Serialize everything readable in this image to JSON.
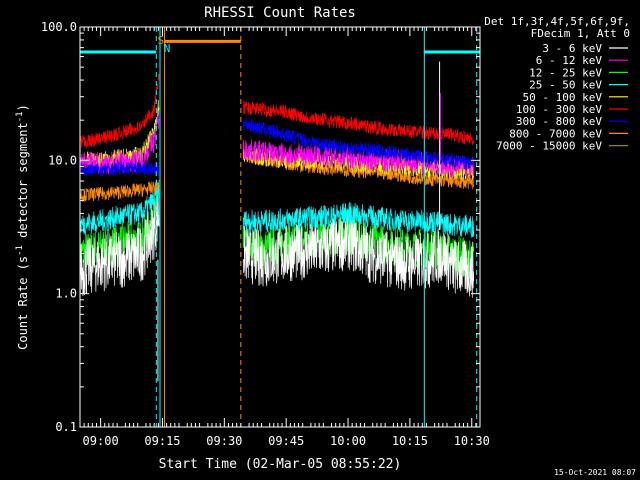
{
  "chart_data": {
    "type": "line",
    "title": "RHESSI Count Rates",
    "xlabel": "Start Time (02-Mar-05 08:55:22)",
    "ylabel_parts": [
      "Count Rate (s",
      "-1",
      " detector segment",
      "-1",
      ")"
    ],
    "yscale": "log",
    "ylim": [
      0.1,
      100.0
    ],
    "xlim_minutes_after_0855": [
      0,
      97
    ],
    "yticks": [
      {
        "value": 0.1,
        "label": "0.1"
      },
      {
        "value": 1.0,
        "label": "1.0"
      },
      {
        "value": 10.0,
        "label": "10.0"
      },
      {
        "value": 100.0,
        "label": "100.0"
      }
    ],
    "xticks": [
      {
        "minute": 5,
        "label": "09:00"
      },
      {
        "minute": 20,
        "label": "09:15"
      },
      {
        "minute": 35,
        "label": "09:30"
      },
      {
        "minute": 50,
        "label": "09:45"
      },
      {
        "minute": 65,
        "label": "10:00"
      },
      {
        "minute": 80,
        "label": "10:15"
      },
      {
        "minute": 95,
        "label": "10:30"
      }
    ],
    "legend_header": [
      "Det 1f,3f,4f,5f,6f,9f,",
      "FDecim 1, Att 0"
    ],
    "legend_placement": "right, outside plot",
    "gap_minutes": [
      19.2,
      39.5
    ],
    "series": [
      {
        "name": "3 - 6 keV",
        "color": "#ffffff",
        "base": 2.0,
        "amp": 0.5,
        "x": [
          0,
          5,
          10,
          15,
          18,
          19,
          39.5,
          45,
          50,
          55,
          60,
          65,
          70,
          75,
          80,
          85,
          88,
          90,
          95
        ],
        "y": [
          1.5,
          1.7,
          1.8,
          2.0,
          3.0,
          4.0,
          2.0,
          1.8,
          2.0,
          2.1,
          2.2,
          2.5,
          2.0,
          1.8,
          1.7,
          1.8,
          2.0,
          1.6,
          1.5
        ]
      },
      {
        "name": "6 - 12 keV",
        "color": "#ff00ff",
        "base": 9.0,
        "amp": 0.2,
        "x": [
          0,
          5,
          10,
          15,
          18,
          19,
          39.5,
          45,
          50,
          55,
          60,
          65,
          70,
          75,
          80,
          85,
          90,
          95
        ],
        "y": [
          9.5,
          9.5,
          9.8,
          10.0,
          14.0,
          20.0,
          12.0,
          11.5,
          11.0,
          11.0,
          10.5,
          10.5,
          10.0,
          10.0,
          9.8,
          9.5,
          9.0,
          9.0
        ]
      },
      {
        "name": "12 - 25 keV",
        "color": "#00ff00",
        "base": 2.5,
        "amp": 0.35,
        "x": [
          0,
          5,
          10,
          15,
          18,
          19,
          39.5,
          45,
          50,
          55,
          60,
          65,
          70,
          75,
          80,
          85,
          90,
          95
        ],
        "y": [
          2.0,
          2.2,
          2.4,
          2.6,
          3.5,
          5.0,
          2.3,
          2.2,
          2.4,
          2.5,
          2.6,
          2.8,
          2.5,
          2.3,
          2.2,
          2.2,
          2.0,
          1.8
        ]
      },
      {
        "name": "25 - 50 keV",
        "color": "#00ffff",
        "base": 3.5,
        "amp": 0.2,
        "x": [
          0,
          5,
          10,
          15,
          18,
          19,
          39.5,
          45,
          50,
          55,
          60,
          65,
          70,
          75,
          80,
          85,
          90,
          95
        ],
        "y": [
          3.3,
          3.5,
          3.8,
          4.0,
          5.0,
          6.0,
          3.5,
          3.5,
          3.6,
          3.7,
          3.8,
          4.0,
          3.8,
          3.6,
          3.5,
          3.5,
          3.3,
          3.2
        ]
      },
      {
        "name": "50 - 100 keV",
        "color": "#ffff00",
        "base": 10.0,
        "amp": 0.15,
        "x": [
          0,
          5,
          10,
          15,
          18,
          19,
          39.5,
          45,
          50,
          55,
          60,
          65,
          70,
          75,
          80,
          85,
          90,
          95
        ],
        "y": [
          10.0,
          10.0,
          10.5,
          11.0,
          16.0,
          25.0,
          11.0,
          10.5,
          10.0,
          10.0,
          9.8,
          9.5,
          9.3,
          9.0,
          8.8,
          8.5,
          8.2,
          8.0
        ]
      },
      {
        "name": "100 - 300 keV",
        "color": "#ff0000",
        "base": 14.0,
        "amp": 0.12,
        "x": [
          0,
          5,
          10,
          15,
          18,
          19,
          39.5,
          45,
          50,
          55,
          60,
          65,
          70,
          75,
          80,
          85,
          90,
          95
        ],
        "y": [
          13.5,
          14.5,
          16.0,
          18.0,
          24.0,
          40.0,
          25.0,
          24.0,
          23.0,
          21.0,
          20.0,
          19.0,
          18.0,
          17.0,
          16.5,
          16.0,
          15.5,
          14.5
        ]
      },
      {
        "name": "300 - 800 keV",
        "color": "#0000ff",
        "base": 8.5,
        "amp": 0.12,
        "x": [
          0,
          5,
          10,
          15,
          18,
          19,
          39.5,
          45,
          50,
          55,
          60,
          65,
          70,
          75,
          80,
          85,
          90,
          95
        ],
        "y": [
          8.5,
          8.5,
          8.7,
          8.8,
          8.5,
          8.5,
          19.0,
          17.0,
          15.5,
          14.0,
          13.0,
          12.5,
          12.0,
          11.5,
          11.0,
          10.5,
          10.0,
          9.5
        ]
      },
      {
        "name": "800 - 7000 keV",
        "color": "#ff8c00",
        "base": 5.5,
        "amp": 0.12,
        "x": [
          0,
          5,
          10,
          15,
          18,
          19,
          39.5,
          45,
          50,
          55,
          60,
          65,
          70,
          75,
          80,
          85,
          90,
          95
        ],
        "y": [
          5.5,
          5.6,
          5.8,
          6.0,
          6.2,
          6.5,
          11.0,
          10.0,
          9.5,
          9.0,
          8.7,
          8.5,
          8.2,
          8.0,
          7.5,
          7.2,
          7.0,
          6.8
        ]
      },
      {
        "name": "7000 - 15000 keV",
        "color": "#8b8b00",
        "base": 0.0,
        "amp": 0.0,
        "x": [],
        "y": []
      }
    ],
    "flags": [
      {
        "label": "S",
        "color": "#ff8c00"
      },
      {
        "label": "N",
        "color": "#00ffff"
      }
    ],
    "attenuator_bar_minutes": [
      20.5,
      39.0
    ],
    "night_bar_minutes": [
      [
        0,
        18.5
      ],
      [
        83.5,
        97
      ]
    ]
  },
  "footer": {
    "timestamp": "15-Oct-2021 08:07"
  }
}
